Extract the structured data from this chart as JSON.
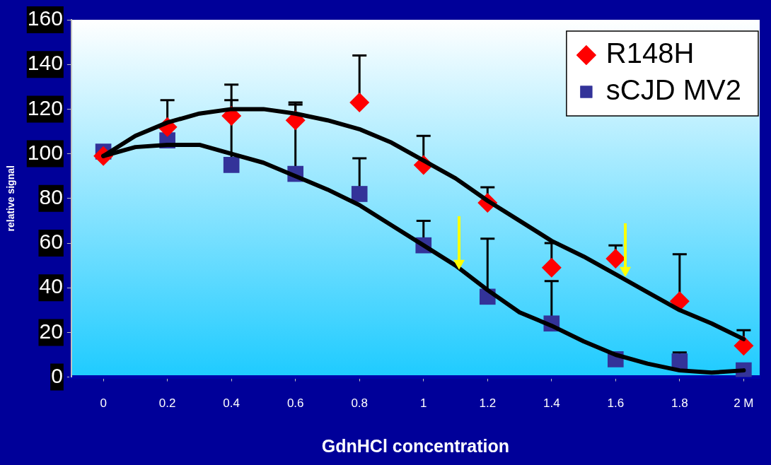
{
  "chart_data": {
    "type": "scatter",
    "xlabel": "GdnHCl concentration",
    "ylabel": "relative signal",
    "x": [
      0,
      0.2,
      0.4,
      0.6,
      0.8,
      1,
      1.2,
      1.4,
      1.6,
      1.8,
      2
    ],
    "xlim": [
      -0.1,
      2.05
    ],
    "xticks": [
      0,
      0.2,
      0.4,
      0.6,
      0.8,
      1,
      1.2,
      1.4,
      1.6,
      1.8,
      {
        "value": 2,
        "label": "2 M"
      }
    ],
    "ylim": [
      0,
      160
    ],
    "yticks": [
      0,
      20,
      40,
      60,
      80,
      100,
      120,
      140,
      160
    ],
    "grid": false,
    "legend": "top right",
    "series": [
      {
        "name": "R148H",
        "marker": "diamond",
        "color": "#ff0000",
        "values": [
          99,
          112,
          117,
          115,
          123,
          95,
          78,
          49,
          53,
          34,
          14
        ],
        "errors": [
          null,
          [
            112,
            124
          ],
          [
            117,
            131
          ],
          [
            115,
            123
          ],
          [
            123,
            144
          ],
          [
            95,
            108
          ],
          [
            78,
            85
          ],
          [
            49,
            60
          ],
          [
            53,
            59
          ],
          [
            34,
            55
          ],
          [
            14,
            21
          ]
        ]
      },
      {
        "name": "sCJD MV2",
        "marker": "square",
        "color": "#333399",
        "values": [
          101,
          106,
          95,
          91,
          82,
          59,
          36,
          24,
          8,
          7,
          3
        ],
        "errors": [
          null,
          null,
          [
            95,
            124
          ],
          [
            91,
            122
          ],
          [
            82,
            98
          ],
          [
            59,
            70
          ],
          [
            36,
            62
          ],
          [
            24,
            43
          ],
          null,
          [
            7,
            11
          ],
          null
        ]
      },
      {
        "type": "line",
        "marker": "none",
        "color": "#000000",
        "x": [
          0,
          0.1,
          0.2,
          0.3,
          0.4,
          0.5,
          0.6,
          0.7,
          0.8,
          0.9,
          1,
          1.1,
          1.2,
          1.3,
          1.4,
          1.5,
          1.6,
          1.7,
          1.8,
          1.9,
          2
        ],
        "values": [
          99,
          108,
          114,
          118,
          120,
          120,
          118,
          115,
          111,
          105,
          97,
          89,
          79,
          70,
          61,
          54,
          46,
          38,
          30,
          24,
          17
        ]
      },
      {
        "type": "line",
        "marker": "none",
        "color": "#000000",
        "x": [
          0,
          0.1,
          0.2,
          0.3,
          0.4,
          0.5,
          0.6,
          0.7,
          0.8,
          0.9,
          1,
          1.1,
          1.2,
          1.3,
          1.4,
          1.5,
          1.6,
          1.7,
          1.8,
          1.9,
          2
        ],
        "values": [
          99,
          103,
          104,
          104,
          100,
          96,
          90,
          84,
          77,
          68,
          59,
          50,
          39,
          29,
          23,
          16,
          10,
          6,
          3,
          2,
          3
        ]
      }
    ]
  }
}
